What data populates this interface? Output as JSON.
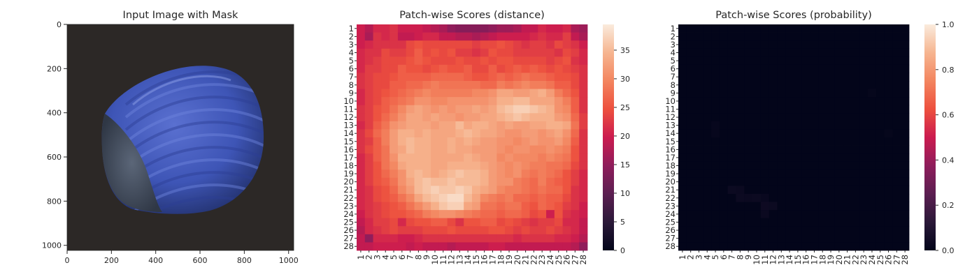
{
  "chart_data": [
    {
      "type": "image",
      "title": "Input Image with Mask",
      "xlim": [
        0,
        1023
      ],
      "ylim": [
        1023,
        0
      ],
      "x_ticks": [
        "0",
        "200",
        "400",
        "600",
        "800",
        "1000"
      ],
      "y_ticks": [
        "0",
        "200",
        "400",
        "600",
        "800",
        "1000"
      ],
      "x_tick_values": [
        0,
        200,
        400,
        600,
        800,
        1000
      ],
      "y_tick_values": [
        0,
        200,
        400,
        600,
        800,
        1000
      ],
      "background_color": "#2c2826",
      "object_color": "#3f56b6",
      "object_dark_color": "#22306f",
      "cap_color": "#4a5566"
    },
    {
      "type": "heatmap",
      "title": "Patch-wise Scores (distance)",
      "rows": 28,
      "cols": 28,
      "row_labels": [
        "1",
        "2",
        "3",
        "4",
        "5",
        "6",
        "7",
        "8",
        "9",
        "10",
        "11",
        "12",
        "13",
        "14",
        "15",
        "16",
        "17",
        "18",
        "19",
        "20",
        "21",
        "22",
        "23",
        "24",
        "25",
        "26",
        "27",
        "28"
      ],
      "col_labels": [
        "1",
        "2",
        "3",
        "4",
        "5",
        "6",
        "7",
        "8",
        "9",
        "10",
        "11",
        "12",
        "13",
        "14",
        "15",
        "16",
        "17",
        "18",
        "19",
        "20",
        "21",
        "22",
        "23",
        "24",
        "25",
        "26",
        "27",
        "28"
      ],
      "vmin": 0,
      "vmax": 39.5,
      "colorbar_ticks": [
        "0",
        "5",
        "10",
        "15",
        "20",
        "25",
        "30",
        "35"
      ],
      "colorbar_tick_values": [
        0,
        5,
        10,
        15,
        20,
        25,
        30,
        35
      ],
      "colormap": "rocket",
      "values": [
        [
          20,
          18,
          21,
          21,
          22,
          20,
          20,
          20,
          19,
          18,
          17,
          15,
          14,
          14,
          14,
          14,
          15,
          16,
          16,
          17,
          19,
          19,
          21,
          20,
          20,
          21,
          17,
          16
        ],
        [
          20,
          17,
          22,
          21,
          22,
          19,
          19,
          20,
          21,
          21,
          19,
          19,
          18,
          18,
          17,
          18,
          19,
          20,
          20,
          20,
          20,
          21,
          22,
          21,
          21,
          23,
          19,
          17
        ],
        [
          20,
          21,
          22,
          22,
          22,
          22,
          24,
          25,
          24,
          24,
          24,
          24,
          24,
          24,
          23,
          24,
          24,
          25,
          24,
          23,
          22,
          23,
          23,
          22,
          24,
          23,
          22,
          20
        ],
        [
          21,
          22,
          22,
          24,
          23,
          23,
          24,
          26,
          24,
          25,
          24,
          25,
          23,
          23,
          22,
          23,
          25,
          24,
          24,
          23,
          23,
          23,
          23,
          23,
          22,
          24,
          23,
          21
        ],
        [
          21,
          22,
          23,
          24,
          24,
          24,
          25,
          26,
          25,
          24,
          24,
          24,
          25,
          24,
          24,
          25,
          24,
          25,
          25,
          24,
          24,
          24,
          24,
          23,
          24,
          25,
          22,
          21
        ],
        [
          21,
          23,
          23,
          24,
          24,
          26,
          25,
          25,
          24,
          25,
          26,
          25,
          25,
          26,
          24,
          24,
          26,
          24,
          25,
          26,
          25,
          26,
          25,
          24,
          25,
          24,
          23,
          22
        ],
        [
          22,
          23,
          24,
          24,
          25,
          26,
          26,
          26,
          26,
          27,
          27,
          27,
          27,
          26,
          25,
          25,
          26,
          27,
          26,
          27,
          28,
          27,
          27,
          26,
          25,
          25,
          24,
          22
        ],
        [
          22,
          23,
          24,
          24,
          26,
          26,
          27,
          27,
          28,
          29,
          28,
          28,
          28,
          28,
          28,
          27,
          27,
          29,
          28,
          29,
          30,
          29,
          29,
          28,
          26,
          26,
          24,
          22
        ],
        [
          21,
          23,
          24,
          25,
          26,
          27,
          28,
          29,
          30,
          29,
          29,
          29,
          29,
          29,
          30,
          30,
          31,
          33,
          33,
          32,
          32,
          33,
          34,
          32,
          29,
          27,
          25,
          22
        ],
        [
          21,
          23,
          24,
          26,
          27,
          28,
          29,
          31,
          31,
          30,
          30,
          31,
          31,
          31,
          31,
          31,
          32,
          34,
          34,
          35,
          35,
          33,
          33,
          33,
          31,
          29,
          26,
          22
        ],
        [
          22,
          23,
          25,
          26,
          28,
          30,
          32,
          33,
          32,
          31,
          32,
          31,
          32,
          32,
          33,
          32,
          33,
          35,
          36,
          37,
          37,
          36,
          35,
          34,
          31,
          30,
          26,
          22
        ],
        [
          22,
          23,
          25,
          27,
          29,
          31,
          33,
          33,
          32,
          33,
          32,
          32,
          31,
          32,
          32,
          33,
          33,
          34,
          35,
          36,
          35,
          34,
          34,
          34,
          32,
          31,
          27,
          23
        ],
        [
          21,
          23,
          26,
          28,
          31,
          32,
          33,
          33,
          33,
          32,
          33,
          33,
          35,
          33,
          34,
          34,
          33,
          32,
          33,
          32,
          32,
          33,
          33,
          34,
          34,
          33,
          28,
          23
        ],
        [
          22,
          24,
          27,
          29,
          32,
          34,
          34,
          33,
          34,
          33,
          33,
          33,
          34,
          35,
          34,
          33,
          33,
          32,
          31,
          31,
          32,
          32,
          31,
          32,
          33,
          31,
          27,
          22
        ],
        [
          22,
          23,
          26,
          29,
          32,
          34,
          35,
          34,
          34,
          33,
          33,
          34,
          33,
          34,
          33,
          32,
          32,
          31,
          31,
          30,
          31,
          32,
          31,
          31,
          32,
          30,
          26,
          22
        ],
        [
          22,
          24,
          26,
          28,
          32,
          33,
          35,
          34,
          34,
          33,
          33,
          34,
          33,
          33,
          32,
          32,
          32,
          31,
          30,
          31,
          31,
          30,
          30,
          31,
          30,
          29,
          25,
          22
        ],
        [
          21,
          23,
          26,
          28,
          31,
          34,
          34,
          34,
          34,
          33,
          33,
          33,
          33,
          34,
          33,
          32,
          32,
          30,
          31,
          30,
          30,
          30,
          29,
          30,
          29,
          28,
          25,
          22
        ],
        [
          21,
          23,
          25,
          28,
          30,
          33,
          34,
          34,
          34,
          33,
          33,
          34,
          34,
          34,
          34,
          33,
          32,
          31,
          30,
          31,
          30,
          29,
          29,
          28,
          28,
          27,
          24,
          22
        ],
        [
          21,
          23,
          25,
          27,
          29,
          31,
          34,
          35,
          34,
          33,
          34,
          35,
          36,
          35,
          35,
          34,
          32,
          31,
          30,
          31,
          29,
          28,
          29,
          28,
          27,
          25,
          23,
          21
        ],
        [
          21,
          23,
          25,
          26,
          28,
          31,
          33,
          35,
          36,
          35,
          35,
          36,
          35,
          35,
          35,
          34,
          32,
          31,
          31,
          29,
          28,
          27,
          29,
          27,
          26,
          25,
          23,
          21
        ],
        [
          21,
          22,
          24,
          25,
          27,
          30,
          32,
          35,
          36,
          37,
          36,
          36,
          37,
          36,
          34,
          33,
          32,
          30,
          29,
          29,
          28,
          27,
          28,
          27,
          27,
          25,
          22,
          21
        ],
        [
          21,
          22,
          24,
          25,
          26,
          28,
          30,
          33,
          35,
          36,
          37,
          38,
          38,
          35,
          33,
          30,
          29,
          28,
          29,
          27,
          27,
          26,
          27,
          26,
          26,
          24,
          22,
          21
        ],
        [
          21,
          22,
          23,
          24,
          25,
          26,
          28,
          30,
          32,
          34,
          36,
          37,
          37,
          33,
          32,
          28,
          28,
          27,
          28,
          28,
          26,
          25,
          27,
          26,
          25,
          23,
          22,
          20
        ],
        [
          20,
          22,
          23,
          24,
          25,
          25,
          26,
          27,
          29,
          30,
          31,
          31,
          30,
          29,
          28,
          27,
          27,
          26,
          27,
          27,
          26,
          24,
          25,
          20,
          25,
          22,
          21,
          20
        ],
        [
          19,
          21,
          23,
          23,
          24,
          21,
          24,
          25,
          25,
          26,
          26,
          24,
          22,
          25,
          25,
          26,
          26,
          24,
          25,
          24,
          23,
          22,
          23,
          23,
          24,
          21,
          21,
          19
        ],
        [
          18,
          21,
          22,
          23,
          24,
          23,
          23,
          23,
          24,
          24,
          24,
          25,
          24,
          24,
          24,
          24,
          25,
          25,
          24,
          23,
          24,
          23,
          23,
          24,
          23,
          22,
          21,
          19
        ],
        [
          19,
          15,
          21,
          21,
          21,
          20,
          20,
          21,
          22,
          22,
          22,
          22,
          22,
          22,
          22,
          22,
          22,
          22,
          22,
          21,
          22,
          22,
          22,
          22,
          21,
          21,
          20,
          18
        ],
        [
          19,
          19,
          20,
          20,
          20,
          20,
          19,
          20,
          19,
          19,
          19,
          18,
          19,
          19,
          19,
          19,
          20,
          20,
          19,
          19,
          19,
          19,
          19,
          19,
          19,
          19,
          18,
          15
        ]
      ]
    },
    {
      "type": "heatmap",
      "title": "Patch-wise Scores (probability)",
      "rows": 28,
      "cols": 28,
      "row_labels": [
        "1",
        "2",
        "3",
        "4",
        "5",
        "6",
        "7",
        "8",
        "9",
        "10",
        "11",
        "12",
        "13",
        "14",
        "15",
        "16",
        "17",
        "18",
        "19",
        "20",
        "21",
        "22",
        "23",
        "24",
        "25",
        "26",
        "27",
        "28"
      ],
      "col_labels": [
        "1",
        "2",
        "3",
        "4",
        "5",
        "6",
        "7",
        "8",
        "9",
        "10",
        "11",
        "12",
        "13",
        "14",
        "15",
        "16",
        "17",
        "18",
        "19",
        "20",
        "21",
        "22",
        "23",
        "24",
        "25",
        "26",
        "27",
        "28"
      ],
      "vmin": 0,
      "vmax": 1,
      "colorbar_ticks": [
        "0.0",
        "0.2",
        "0.4",
        "0.6",
        "0.8",
        "1.0"
      ],
      "colorbar_tick_values": [
        0,
        0.2,
        0.4,
        0.6,
        0.8,
        1.0
      ],
      "colormap": "rocket",
      "base_value": 0.0,
      "nonzero_cells": [
        {
          "row": 21,
          "col": 7,
          "value": 0.03
        },
        {
          "row": 21,
          "col": 8,
          "value": 0.025
        },
        {
          "row": 22,
          "col": 8,
          "value": 0.03
        },
        {
          "row": 22,
          "col": 9,
          "value": 0.025
        },
        {
          "row": 22,
          "col": 10,
          "value": 0.03
        },
        {
          "row": 22,
          "col": 11,
          "value": 0.02
        },
        {
          "row": 23,
          "col": 11,
          "value": 0.035
        },
        {
          "row": 23,
          "col": 12,
          "value": 0.03
        },
        {
          "row": 24,
          "col": 11,
          "value": 0.025
        },
        {
          "row": 13,
          "col": 5,
          "value": 0.012
        },
        {
          "row": 14,
          "col": 5,
          "value": 0.012
        },
        {
          "row": 9,
          "col": 24,
          "value": 0.01
        },
        {
          "row": 14,
          "col": 26,
          "value": 0.01
        }
      ]
    }
  ]
}
